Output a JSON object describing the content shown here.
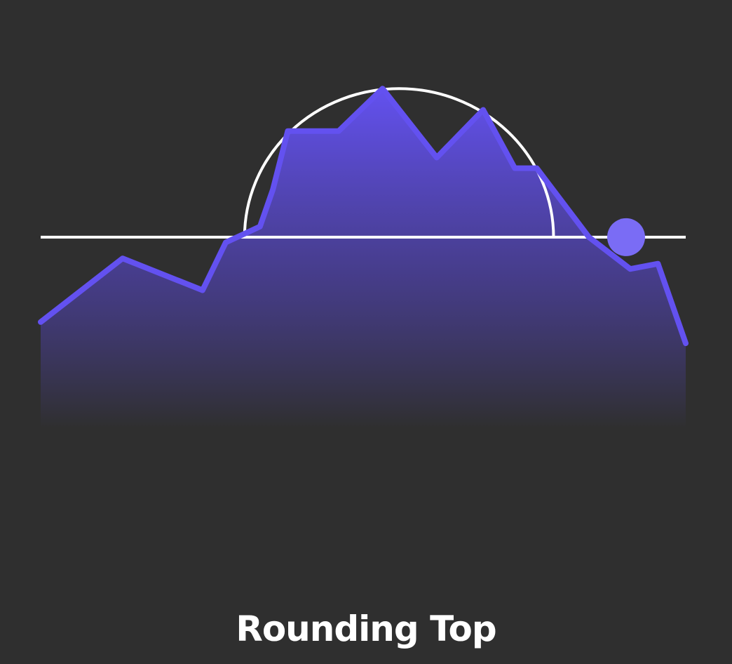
{
  "caption": "Rounding Top",
  "colors": {
    "background": "#2f2f2f",
    "line": "#6351f0",
    "area_top": "#6351f0",
    "area_bottom": "#2f2f2f",
    "reference": "#ffffff",
    "breakout_marker": "#7a6cf5"
  },
  "chart_data": {
    "type": "area",
    "pattern": "rounding-top",
    "series": [
      {
        "values": [
          40,
          52,
          46,
          55,
          58,
          65,
          76,
          76,
          84,
          71,
          80,
          69,
          69,
          56,
          50,
          51,
          36
        ]
      }
    ],
    "reference_line": 56,
    "breakout_index": 13.9,
    "ylim": [
      20,
      88
    ]
  }
}
